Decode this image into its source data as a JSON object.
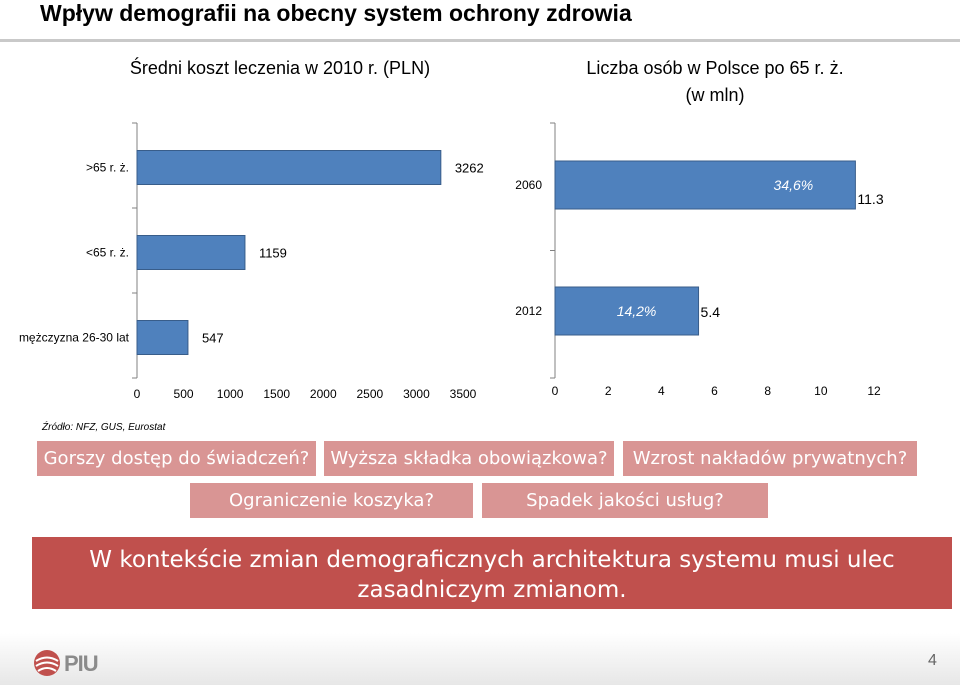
{
  "slide": {
    "title": "Wpływ demografii na obecny system ochrony zdrowia",
    "source": "Źródło: NFZ, GUS, Eurostat",
    "page_number": "4",
    "logo_text": "PIU"
  },
  "questions": [
    "Gorszy dostęp do świadczeń?",
    "Wyższa składka obowiązkowa?",
    "Wzrost nakładów prywatnych?",
    "Ograniczenie koszyka?",
    "Spadek jakości usług?"
  ],
  "conclusion": {
    "line1": "W kontekście zmian demograficznych architektura systemu musi ulec",
    "line2": "zasadniczym zmianom."
  },
  "colors": {
    "bar": "#4f81bd",
    "question_box": "#d99594",
    "conclusion_box": "#c0504d",
    "axis": "#808080"
  },
  "chart_data": [
    {
      "type": "bar",
      "orientation": "horizontal",
      "title": "Średni koszt leczenia w 2010 r. (PLN)",
      "categories": [
        ">65 r. ż.",
        "<65 r. ż.",
        "mężczyzna 26-30 lat"
      ],
      "values": [
        3262,
        1159,
        547
      ],
      "data_labels": [
        "3262",
        "1159",
        "547"
      ],
      "xlim": [
        0,
        3500
      ],
      "xticks": [
        "0",
        "500",
        "1000",
        "1500",
        "2000",
        "2500",
        "3000",
        "3500"
      ],
      "grid": false,
      "legend": "none"
    },
    {
      "type": "bar",
      "orientation": "horizontal",
      "title": "Liczba osób w Polsce po 65 r. ż.",
      "subtitle": "(w mln)",
      "categories": [
        "2060",
        "2012"
      ],
      "values": [
        11.3,
        5.4
      ],
      "data_labels": [
        "11.3",
        "5.4"
      ],
      "share_labels": [
        "34,6%",
        "14,2%"
      ],
      "xlim": [
        0,
        12
      ],
      "xticks": [
        "0",
        "2",
        "4",
        "6",
        "8",
        "10",
        "12"
      ],
      "grid": false,
      "legend": "none"
    }
  ]
}
